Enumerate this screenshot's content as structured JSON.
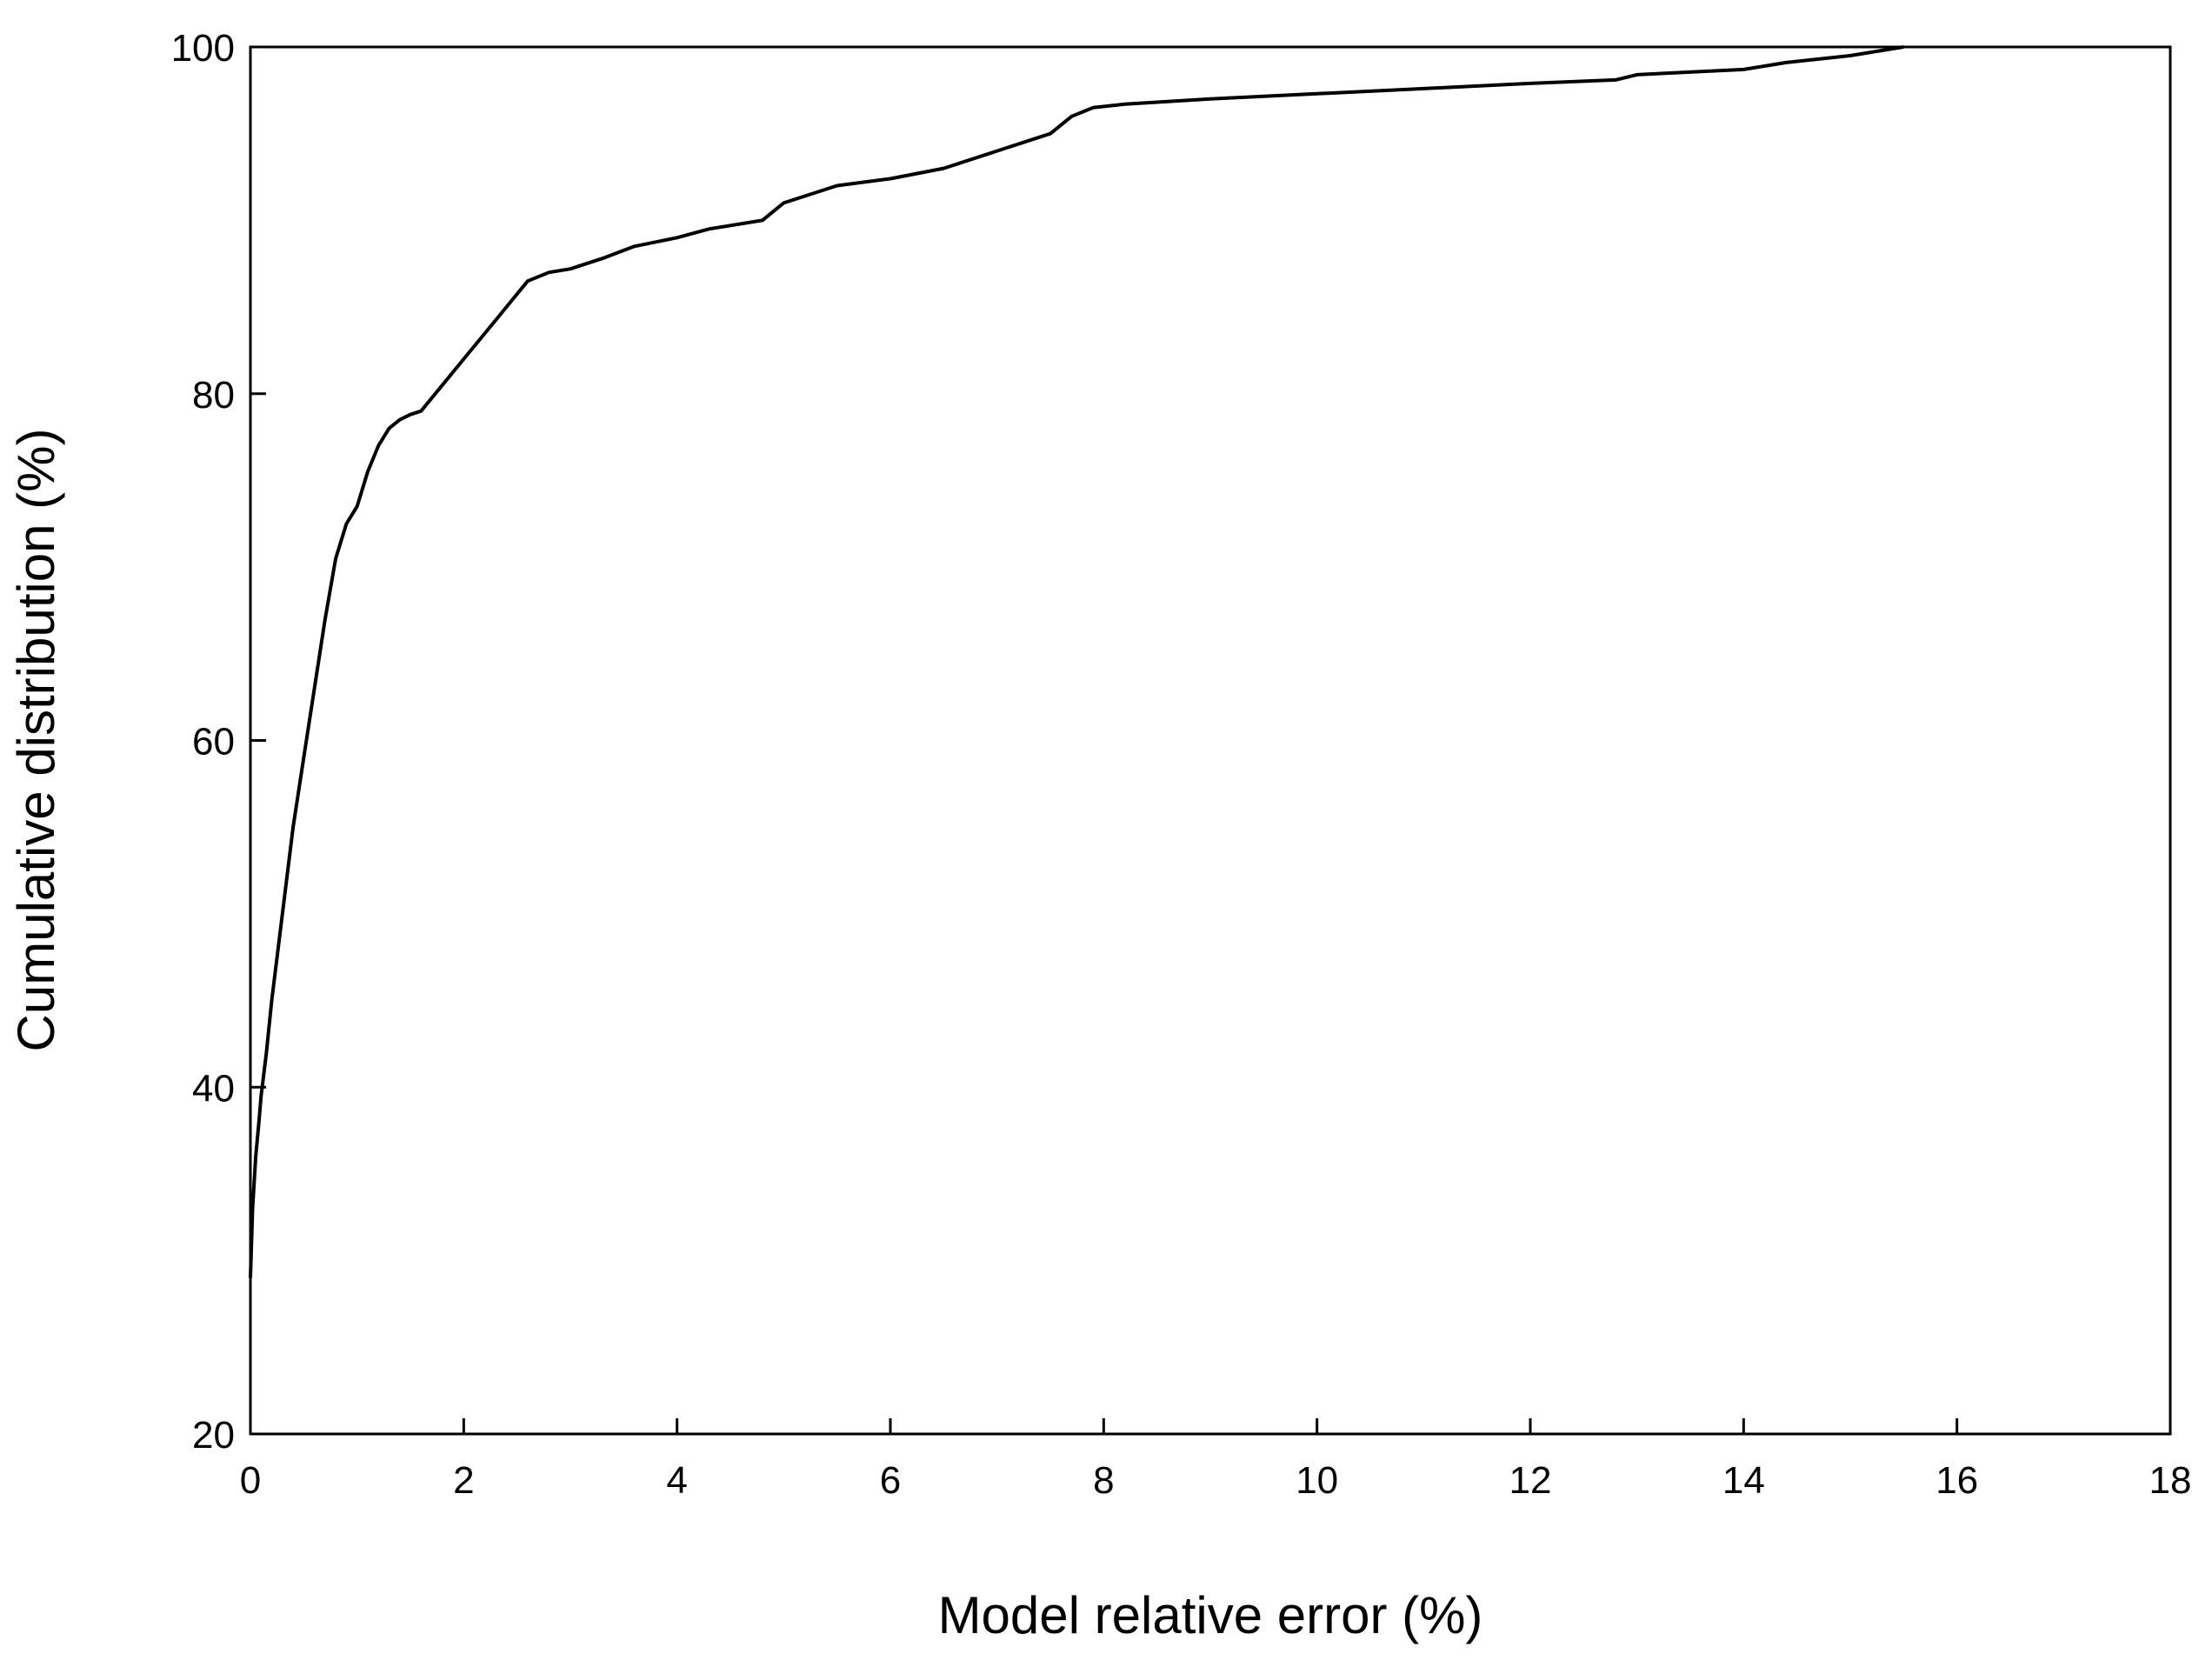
{
  "chart_data": {
    "type": "line",
    "title": "",
    "xlabel": "Model relative error (%)",
    "ylabel": "Cumulative distribution (%)",
    "xlim": [
      0,
      18
    ],
    "ylim": [
      20,
      100
    ],
    "xticks": [
      0,
      2,
      4,
      6,
      8,
      10,
      12,
      14,
      16,
      18
    ],
    "yticks": [
      20,
      40,
      60,
      80,
      100
    ],
    "grid": false,
    "legend": "none",
    "line_color": "#000000",
    "series": [
      {
        "x": [
          0.0,
          0.02,
          0.05,
          0.08,
          0.1,
          0.15,
          0.2,
          0.3,
          0.4,
          0.5,
          0.6,
          0.7,
          0.8,
          0.9,
          1.0,
          1.1,
          1.2,
          1.3,
          1.4,
          1.5,
          1.6,
          1.8,
          2.0,
          2.2,
          2.4,
          2.6,
          2.8,
          3.0,
          3.3,
          3.6,
          4.0,
          4.3,
          4.8,
          5.0,
          5.5,
          6.0,
          6.5,
          7.0,
          7.5,
          7.7,
          7.9,
          8.2,
          9.0,
          10.0,
          11.0,
          12.0,
          12.8,
          13.0,
          14.0,
          14.4,
          15.0,
          15.5
        ],
        "y": [
          29.0,
          33.0,
          36.0,
          38.0,
          39.5,
          42.0,
          45.0,
          50.0,
          55.0,
          59.0,
          63.0,
          67.0,
          70.5,
          72.5,
          73.5,
          75.5,
          77.0,
          78.0,
          78.5,
          78.8,
          79.0,
          80.5,
          82.0,
          83.5,
          85.0,
          86.5,
          87.0,
          87.2,
          87.8,
          88.5,
          89.0,
          89.5,
          90.0,
          91.0,
          92.0,
          92.4,
          93.0,
          94.0,
          95.0,
          96.0,
          96.5,
          96.7,
          97.0,
          97.3,
          97.6,
          97.9,
          98.1,
          98.4,
          98.7,
          99.1,
          99.5,
          100.0
        ]
      }
    ]
  }
}
